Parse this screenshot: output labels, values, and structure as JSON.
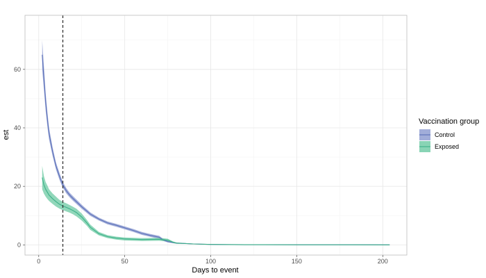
{
  "chart_data": {
    "type": "line",
    "xlabel": "Days to event",
    "ylabel": "est",
    "xlim": [
      -8,
      214
    ],
    "ylim": [
      -3.5,
      78.5
    ],
    "x_ticks": [
      0,
      50,
      100,
      150,
      200
    ],
    "y_ticks": [
      0,
      20,
      40,
      60
    ],
    "grid": true,
    "vline": {
      "x": 14,
      "style": "dashed",
      "color": "#333333"
    },
    "legend": {
      "title": "Vaccination group",
      "placement": "right"
    },
    "series": [
      {
        "name": "Control",
        "color": "#5a6fb8",
        "fill": "#8a98cf",
        "x": [
          2,
          3,
          4,
          5,
          6,
          8,
          10,
          12,
          14,
          16,
          18,
          20,
          25,
          30,
          35,
          40,
          45,
          50,
          55,
          60,
          65,
          70,
          72,
          75,
          80,
          90,
          100,
          110,
          120,
          150,
          180,
          204
        ],
        "y": [
          65,
          57,
          49,
          43,
          38,
          32,
          27,
          23.5,
          20.5,
          18.5,
          17,
          15.8,
          13,
          10.5,
          8.8,
          7.5,
          6.7,
          5.8,
          4.9,
          3.9,
          3.2,
          2.6,
          1.8,
          1.1,
          0.6,
          0.3,
          0.15,
          0.08,
          0.05,
          0.02,
          0.01,
          0.0
        ],
        "lower": [
          60,
          53,
          46,
          40.5,
          36,
          30.5,
          25.8,
          22.3,
          19.5,
          17.6,
          16.2,
          15,
          12.3,
          9.9,
          8.3,
          7,
          6.2,
          5.3,
          4.4,
          3.4,
          2.7,
          2.1,
          1.4,
          0.8,
          0.4,
          0.2,
          0.1,
          0.05,
          0.03,
          0.0,
          0.0,
          0.0
        ],
        "upper": [
          70,
          61,
          52,
          45.5,
          40,
          33.5,
          28.2,
          24.7,
          21.5,
          19.4,
          17.8,
          16.6,
          13.7,
          11.1,
          9.3,
          8,
          7.2,
          6.3,
          5.4,
          4.4,
          3.7,
          3.1,
          2.2,
          1.4,
          0.8,
          0.4,
          0.2,
          0.11,
          0.07,
          0.04,
          0.02,
          0.01
        ]
      },
      {
        "name": "Exposed",
        "color": "#3bb088",
        "fill": "#6cc9a3",
        "x": [
          2,
          3,
          4,
          5,
          6,
          8,
          10,
          12,
          14,
          16,
          18,
          20,
          22,
          25,
          28,
          30,
          35,
          40,
          45,
          50,
          60,
          70,
          75,
          78,
          80,
          90,
          100,
          120,
          150,
          180,
          204
        ],
        "y": [
          23,
          20.5,
          19,
          18,
          17,
          15.8,
          14.8,
          13.9,
          13.3,
          12.8,
          12.3,
          11.7,
          11,
          9.5,
          7.5,
          6,
          3.8,
          2.8,
          2.3,
          2,
          1.8,
          1.9,
          1.6,
          0.9,
          0.6,
          0.3,
          0.15,
          0.05,
          0.02,
          0.01,
          0.0
        ],
        "lower": [
          19,
          17.5,
          16.5,
          15.7,
          15,
          14,
          13.1,
          12.4,
          11.9,
          11.4,
          11,
          10.4,
          9.7,
          8.3,
          6.5,
          5.1,
          3.2,
          2.3,
          1.8,
          1.5,
          1.3,
          1.4,
          1.1,
          0.6,
          0.4,
          0.2,
          0.1,
          0.02,
          0.0,
          0.0,
          0.0
        ],
        "upper": [
          27,
          23.5,
          21.5,
          20.3,
          19,
          17.6,
          16.5,
          15.4,
          14.7,
          14.2,
          13.6,
          13,
          12.3,
          10.7,
          8.5,
          6.9,
          4.4,
          3.3,
          2.8,
          2.5,
          2.3,
          2.4,
          2.1,
          1.2,
          0.8,
          0.4,
          0.2,
          0.08,
          0.04,
          0.02,
          0.01
        ]
      }
    ]
  }
}
